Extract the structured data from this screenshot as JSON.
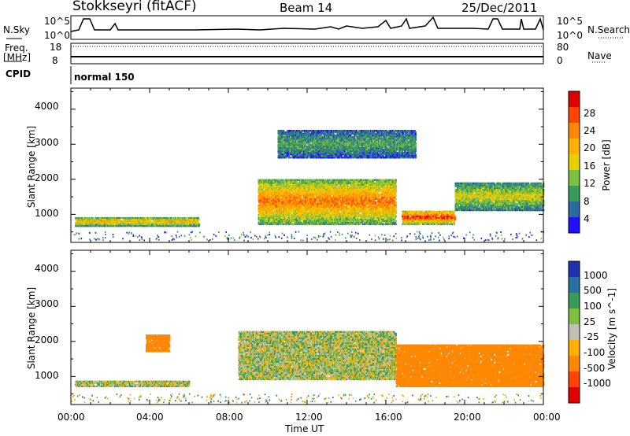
{
  "header": {
    "station": "Stokkseyri (fitACF)",
    "beam": "Beam 14",
    "date": "25/Dec/2011"
  },
  "top_panels": {
    "nsky_label": "N.Sky",
    "nsearch_label": "N.Search",
    "nsky_ticks": [
      "10^5",
      "10^0"
    ],
    "nsearch_ticks": [
      "10^5",
      "10^0"
    ],
    "freq_label": "Freq.",
    "freq_unit": "[MHz]",
    "freq_ticks": [
      "18",
      "8"
    ],
    "nave_label": "Nave",
    "nave_ticks": [
      "80",
      "0"
    ],
    "cpid_label": "CPID",
    "cpid_value": "normal 150"
  },
  "axes": {
    "xlabel": "Time UT",
    "x_ticks": [
      "00:00",
      "04:00",
      "08:00",
      "12:00",
      "16:00",
      "20:00",
      "00:00"
    ],
    "ylabel": "Slant Range [km]",
    "y_ticks": [
      "4000",
      "3000",
      "2000",
      "1000"
    ]
  },
  "power_colorbar": {
    "label": "Power [dB]",
    "ticks": [
      "28",
      "24",
      "20",
      "16",
      "12",
      "8",
      "4"
    ],
    "colors": [
      "#e00000",
      "#ff4400",
      "#ff8800",
      "#ffb000",
      "#e8d000",
      "#7cc040",
      "#3a9a5a",
      "#2a6aa0",
      "#2010ff"
    ]
  },
  "velocity_colorbar": {
    "label": "Velocity [m s^-1]",
    "ticks": [
      "1000",
      "500",
      "100",
      "25",
      "-25",
      "-100",
      "-500",
      "-1000"
    ],
    "colors": [
      "#2030b0",
      "#2a70a0",
      "#3a9a5a",
      "#7cc040",
      "#c0c0b8",
      "#ffb000",
      "#ff8800",
      "#ff4400",
      "#e00000"
    ]
  },
  "chart_data": [
    {
      "type": "heatmap",
      "title": "Power",
      "xlabel": "Time UT",
      "ylabel": "Slant Range [km]",
      "xlim": [
        "00:00",
        "24:00"
      ],
      "ylim": [
        200,
        4600
      ],
      "features": [
        {
          "t": [
            0.2,
            6.5
          ],
          "range_km": [
            650,
            900
          ],
          "level_db": 20
        },
        {
          "t": [
            9.5,
            16.5
          ],
          "range_km": [
            700,
            2000
          ],
          "level_db": 24
        },
        {
          "t": [
            16.8,
            19.5
          ],
          "range_km": [
            700,
            1100
          ],
          "level_db": 28
        },
        {
          "t": [
            19.5,
            24.0
          ],
          "range_km": [
            1100,
            1900
          ],
          "level_db": 16
        },
        {
          "t": [
            10.5,
            17.5
          ],
          "range_km": [
            2600,
            3400
          ],
          "level_db": 10
        }
      ]
    },
    {
      "type": "heatmap",
      "title": "Velocity",
      "xlabel": "Time UT",
      "ylabel": "Slant Range [km]",
      "xlim": [
        "00:00",
        "24:00"
      ],
      "ylim": [
        200,
        4600
      ],
      "features": [
        {
          "t": [
            0.2,
            6.0
          ],
          "range_km": [
            700,
            900
          ],
          "velocity": 0
        },
        {
          "t": [
            8.5,
            16.5
          ],
          "range_km": [
            900,
            2300
          ],
          "velocity": 0
        },
        {
          "t": [
            16.5,
            24.0
          ],
          "range_km": [
            700,
            1900
          ],
          "velocity": -300
        },
        {
          "t": [
            3.8,
            5.0
          ],
          "range_km": [
            1700,
            2200
          ],
          "velocity": -200
        }
      ]
    }
  ]
}
